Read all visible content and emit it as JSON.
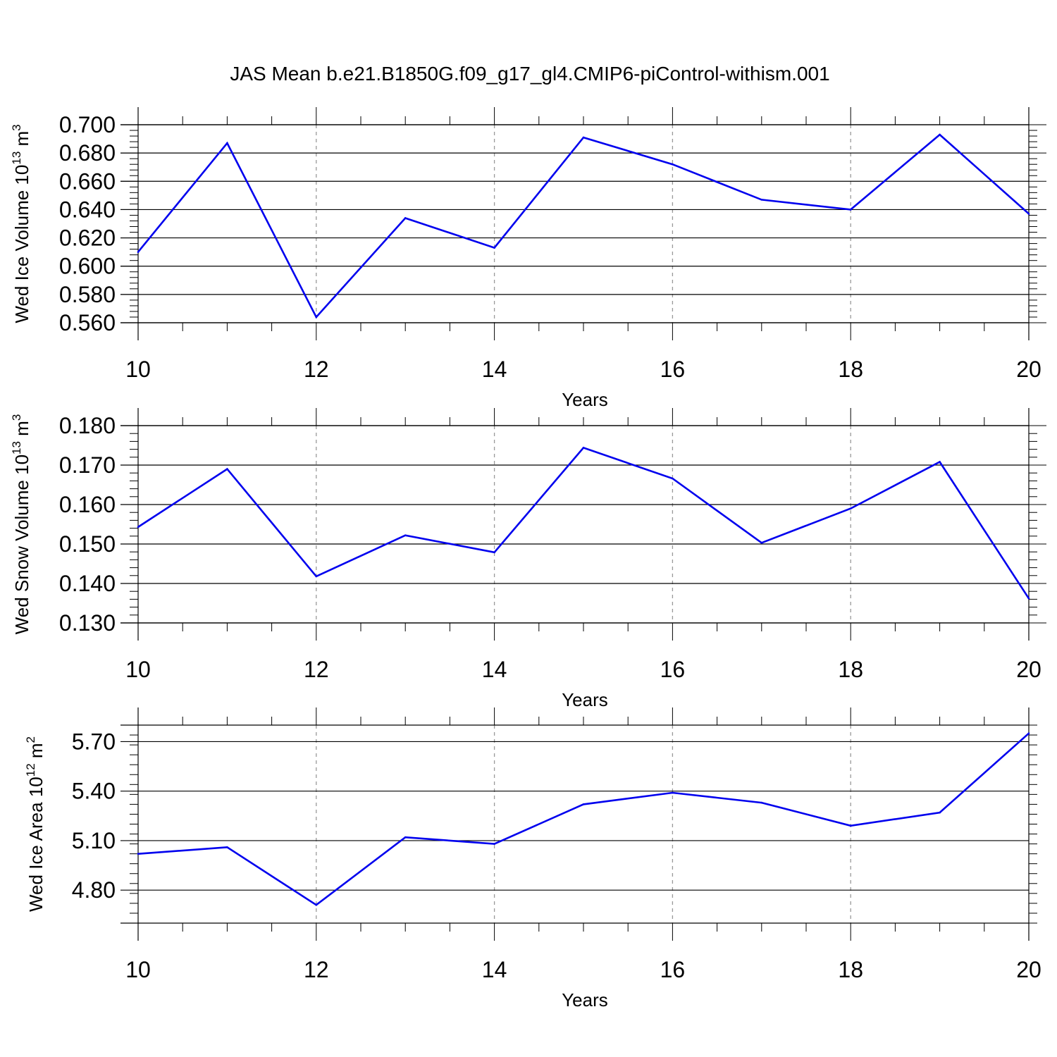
{
  "title": "JAS Mean b.e21.B1850G.f09_g17_gl4.CMIP6-piControl-withism.001",
  "line_color": "#0000ee",
  "chart_data": [
    {
      "type": "line",
      "ylabel": {
        "main": "Wed Ice Volume 10",
        "sup1": "13",
        "mid": " m",
        "sup2": "3"
      },
      "xlabel": "Years",
      "xlim": [
        10,
        20
      ],
      "ylim": [
        0.56,
        0.7
      ],
      "x_ticks": [
        10,
        12,
        14,
        16,
        18,
        20
      ],
      "x_tick_labels": [
        "10",
        "12",
        "14",
        "16",
        "18",
        "20"
      ],
      "y_ticks": [
        0.56,
        0.58,
        0.6,
        0.62,
        0.64,
        0.66,
        0.68,
        0.7
      ],
      "y_tick_labels": [
        "0.560",
        "0.580",
        "0.600",
        "0.620",
        "0.640",
        "0.660",
        "0.680",
        "0.700"
      ],
      "x": [
        10,
        11,
        12,
        13,
        14,
        15,
        16,
        17,
        18,
        19,
        20
      ],
      "values": [
        0.61,
        0.687,
        0.564,
        0.634,
        0.613,
        0.691,
        0.672,
        0.647,
        0.64,
        0.693,
        0.637
      ]
    },
    {
      "type": "line",
      "ylabel": {
        "main": "Wed Snow Volume 10",
        "sup1": "13",
        "mid": " m",
        "sup2": "3"
      },
      "xlabel": "Years",
      "xlim": [
        10,
        20
      ],
      "ylim": [
        0.13,
        0.18
      ],
      "x_ticks": [
        10,
        12,
        14,
        16,
        18,
        20
      ],
      "x_tick_labels": [
        "10",
        "12",
        "14",
        "16",
        "18",
        "20"
      ],
      "y_ticks": [
        0.13,
        0.14,
        0.15,
        0.16,
        0.17,
        0.18
      ],
      "y_tick_labels": [
        "0.130",
        "0.140",
        "0.150",
        "0.160",
        "0.170",
        "0.180"
      ],
      "x": [
        10,
        11,
        12,
        13,
        14,
        15,
        16,
        17,
        18,
        19,
        20
      ],
      "values": [
        0.1543,
        0.169,
        0.1418,
        0.1522,
        0.1479,
        0.1744,
        0.1666,
        0.1503,
        0.159,
        0.1708,
        0.1362
      ]
    },
    {
      "type": "line",
      "ylabel": {
        "main": "Wed Ice Area 10",
        "sup1": "12",
        "mid": " m",
        "sup2": "2"
      },
      "xlabel": "Years",
      "xlim": [
        10,
        20
      ],
      "ylim": [
        4.6,
        5.8
      ],
      "x_ticks": [
        10,
        12,
        14,
        16,
        18,
        20
      ],
      "x_tick_labels": [
        "10",
        "12",
        "14",
        "16",
        "18",
        "20"
      ],
      "y_ticks": [
        4.8,
        5.1,
        5.4,
        5.7
      ],
      "y_tick_labels": [
        "4.80",
        "5.10",
        "5.40",
        "5.70"
      ],
      "x": [
        10,
        11,
        12,
        13,
        14,
        15,
        16,
        17,
        18,
        19,
        20
      ],
      "values": [
        5.02,
        5.06,
        4.71,
        5.12,
        5.08,
        5.32,
        5.39,
        5.33,
        5.19,
        5.27,
        5.75
      ]
    }
  ]
}
